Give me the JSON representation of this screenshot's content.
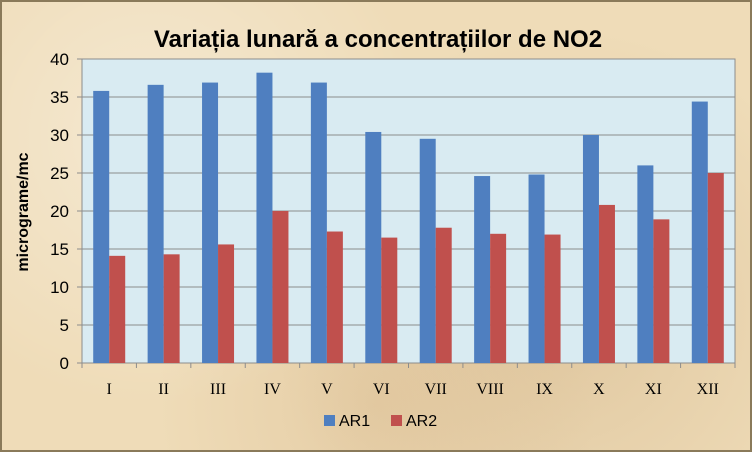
{
  "chart_data": {
    "type": "bar",
    "title": "Variația lunară a concentrațiilor de NO2",
    "xlabel": "",
    "ylabel": "micrograme/mc",
    "ylim": [
      0,
      40
    ],
    "yticks": [
      0,
      5,
      10,
      15,
      20,
      25,
      30,
      35,
      40
    ],
    "categories": [
      "I",
      "II",
      "III",
      "IV",
      "V",
      "VI",
      "VII",
      "VIII",
      "IX",
      "X",
      "XI",
      "XII"
    ],
    "series": [
      {
        "name": "AR1",
        "color": "#4f7fc0",
        "values": [
          35.8,
          36.6,
          36.9,
          38.2,
          36.9,
          30.4,
          29.5,
          24.6,
          24.8,
          30.0,
          26.0,
          34.4
        ]
      },
      {
        "name": "AR2",
        "color": "#c0504d",
        "values": [
          14.1,
          14.3,
          15.6,
          20.0,
          17.3,
          16.5,
          17.8,
          17.0,
          16.9,
          20.8,
          18.9,
          25.0
        ]
      }
    ],
    "grid": true,
    "plot_background": "#d9ebf2",
    "legend_position": "bottom"
  }
}
